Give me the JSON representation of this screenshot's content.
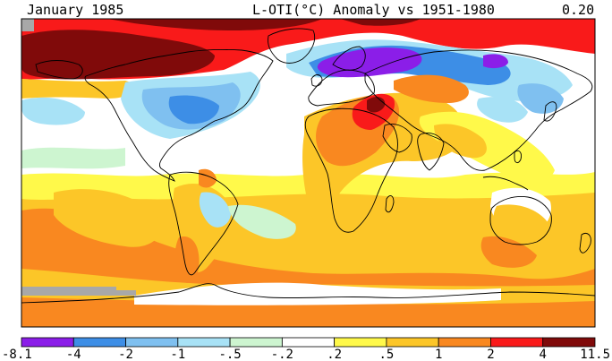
{
  "header": {
    "date": "January 1985",
    "title": "L-OTI(°C) Anomaly vs 1951-1980",
    "global_mean": "0.20"
  },
  "legend": {
    "bins": [
      {
        "color": "#8b1ee8"
      },
      {
        "color": "#3d8ee6"
      },
      {
        "color": "#7fc0f0"
      },
      {
        "color": "#a8e2f6"
      },
      {
        "color": "#cdf5d0"
      },
      {
        "color": "#ffffff"
      },
      {
        "color": "#fff94a"
      },
      {
        "color": "#fcc628"
      },
      {
        "color": "#f98820"
      },
      {
        "color": "#f91a1a"
      },
      {
        "color": "#800a0a"
      }
    ],
    "labels": [
      "-8.1",
      "-4",
      "-2",
      "-1",
      "-.5",
      "-.2",
      ".2",
      ".5",
      "1",
      "2",
      "4",
      "11.5"
    ]
  },
  "colors": {
    "missing": "#a8a8a8",
    "coastline": "#000000"
  }
}
